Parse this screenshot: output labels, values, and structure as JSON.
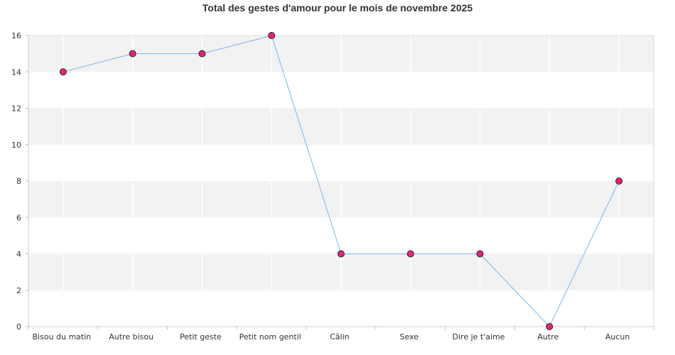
{
  "chart_data": {
    "type": "line",
    "title": "Total des gestes d'amour pour le mois de novembre 2025",
    "categories": [
      "Bisou du matin",
      "Autre bisou",
      "Petit geste",
      "Petit nom gentil",
      "Câlin",
      "Sexe",
      "Dire je t'aime",
      "Autre",
      "Aucun"
    ],
    "series": [
      {
        "values": [
          14,
          15,
          15,
          16,
          4,
          4,
          4,
          0,
          8
        ]
      }
    ],
    "ylim": [
      0,
      16
    ],
    "yticks": [
      0,
      2,
      4,
      6,
      8,
      10,
      12,
      14,
      16
    ],
    "xlabel": "",
    "ylabel": "",
    "grid": true,
    "colors": {
      "line": "#7cb5ec",
      "marker_fill": "#e6237c",
      "marker_stroke": "#222222",
      "band_alt": "#f2f2f2",
      "gridline": "#ffffff"
    }
  }
}
